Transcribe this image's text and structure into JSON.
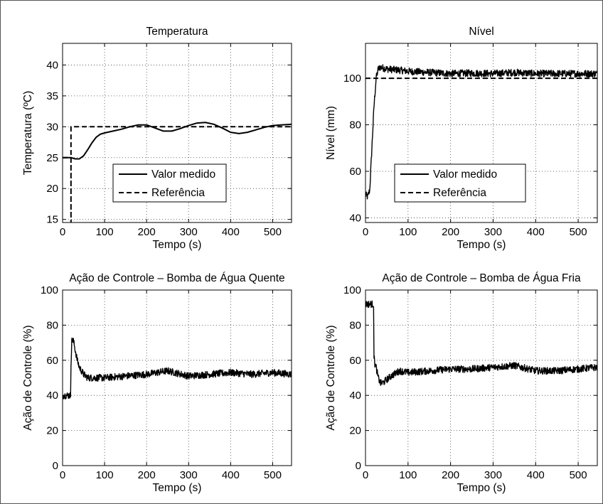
{
  "chart_data": [
    {
      "type": "line",
      "title": "Temperatura",
      "xlabel": "Tempo (s)",
      "ylabel": "Temperatura (ºC)",
      "xlim": [
        0,
        545
      ],
      "ylim": [
        14.5,
        43.5
      ],
      "xticks": [
        0,
        100,
        200,
        300,
        400,
        500
      ],
      "yticks": [
        15,
        20,
        25,
        30,
        35,
        40
      ],
      "grid": true,
      "legend": {
        "placement": "lower-center",
        "entries": [
          "Valor medido",
          "Referência"
        ]
      },
      "series": [
        {
          "name": "Valor medido",
          "style": "solid",
          "x": [
            0,
            20,
            30,
            40,
            50,
            60,
            70,
            80,
            90,
            100,
            120,
            140,
            160,
            180,
            200,
            220,
            240,
            260,
            280,
            300,
            320,
            340,
            360,
            380,
            400,
            420,
            440,
            460,
            480,
            500,
            520,
            545
          ],
          "y": [
            25,
            25,
            24.8,
            24.8,
            25.3,
            26.3,
            27.4,
            28.3,
            28.8,
            29.0,
            29.3,
            29.6,
            30.0,
            30.3,
            30.3,
            29.8,
            29.3,
            29.3,
            29.7,
            30.2,
            30.6,
            30.7,
            30.4,
            29.8,
            29.1,
            28.9,
            29.1,
            29.5,
            29.9,
            30.2,
            30.3,
            30.4
          ]
        },
        {
          "name": "Referência",
          "style": "dashed",
          "x": [
            0,
            20,
            20,
            20,
            545
          ],
          "y": [
            25,
            25,
            14.5,
            30,
            30
          ]
        }
      ]
    },
    {
      "type": "line",
      "title": "Nível",
      "xlabel": "Tempo (s)",
      "ylabel": "Nível (mm)",
      "xlim": [
        0,
        545
      ],
      "ylim": [
        38,
        115
      ],
      "xticks": [
        0,
        100,
        200,
        300,
        400,
        500
      ],
      "yticks": [
        40,
        60,
        80,
        100
      ],
      "grid": true,
      "legend": {
        "placement": "lower-center",
        "entries": [
          "Valor medido",
          "Referência"
        ]
      },
      "series": [
        {
          "name": "Valor medido",
          "style": "solid",
          "noisy": true,
          "x": [
            0,
            5,
            10,
            15,
            20,
            25,
            30,
            35,
            40,
            50,
            60,
            80,
            100,
            150,
            200,
            250,
            300,
            350,
            400,
            450,
            500,
            545
          ],
          "y": [
            50,
            49,
            52,
            70,
            88,
            100,
            104,
            104.8,
            104.5,
            104,
            103.8,
            103.5,
            103,
            102.5,
            102,
            102.2,
            102,
            102.5,
            102,
            102,
            102,
            102
          ]
        },
        {
          "name": "Referência",
          "style": "dashed",
          "x": [
            0,
            545
          ],
          "y": [
            100,
            100
          ]
        }
      ]
    },
    {
      "type": "line",
      "title": "Ação de Controle – Bomba de Água Quente",
      "xlabel": "Tempo (s)",
      "ylabel": "Ação de Controle (%)",
      "xlim": [
        0,
        545
      ],
      "ylim": [
        0,
        100
      ],
      "xticks": [
        0,
        100,
        200,
        300,
        400,
        500
      ],
      "yticks": [
        0,
        20,
        40,
        60,
        80,
        100
      ],
      "grid": true,
      "series": [
        {
          "name": "",
          "style": "solid",
          "noisy": true,
          "x": [
            0,
            19,
            20,
            22,
            25,
            30,
            35,
            40,
            50,
            60,
            80,
            100,
            150,
            200,
            250,
            300,
            350,
            400,
            450,
            500,
            545
          ],
          "y": [
            40,
            40,
            58,
            71,
            72,
            66,
            60,
            56,
            52,
            50,
            50,
            50,
            51,
            52,
            54,
            51,
            52,
            53,
            52,
            53,
            52
          ]
        }
      ]
    },
    {
      "type": "line",
      "title": "Ação de Controle – Bomba de Água Fria",
      "xlabel": "Tempo (s)",
      "ylabel": "Ação de Controle (%)",
      "xlim": [
        0,
        545
      ],
      "ylim": [
        0,
        100
      ],
      "xticks": [
        0,
        100,
        200,
        300,
        400,
        500
      ],
      "yticks": [
        0,
        20,
        40,
        60,
        80,
        100
      ],
      "grid": true,
      "series": [
        {
          "name": "",
          "style": "solid",
          "noisy": true,
          "x": [
            0,
            19,
            20,
            22,
            25,
            30,
            35,
            40,
            50,
            60,
            80,
            100,
            150,
            200,
            250,
            300,
            350,
            400,
            450,
            500,
            545
          ],
          "y": [
            92,
            92,
            62,
            58,
            56,
            50,
            47,
            47,
            49,
            51,
            54,
            53,
            54,
            55,
            55,
            56,
            57,
            54,
            54,
            55,
            56
          ]
        }
      ]
    }
  ]
}
